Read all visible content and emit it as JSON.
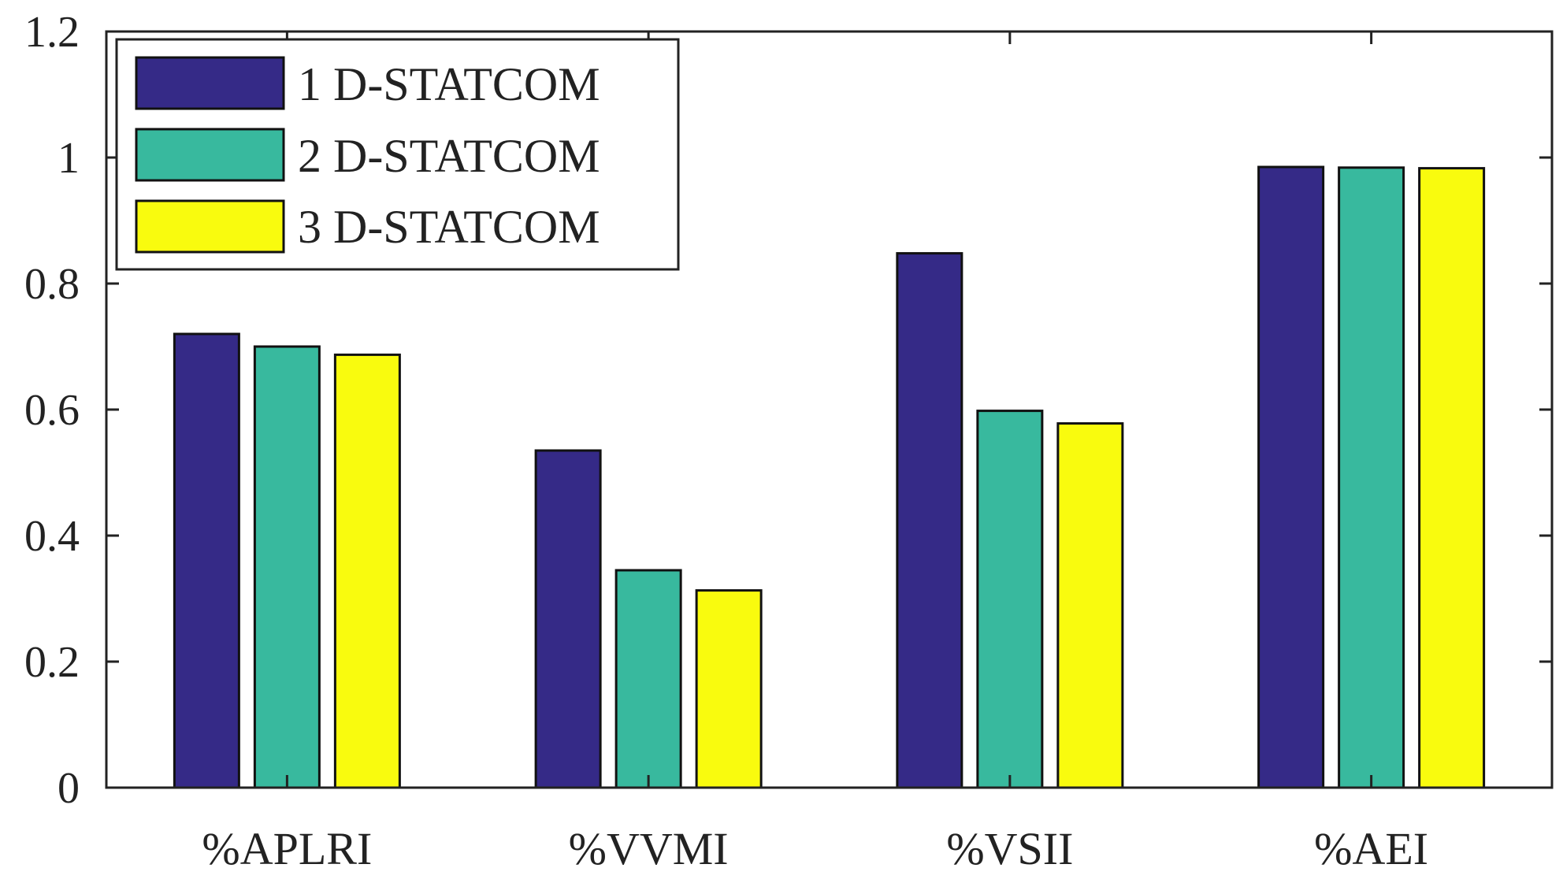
{
  "chart_data": {
    "type": "bar",
    "title": "",
    "xlabel": "",
    "ylabel": "",
    "categories": [
      "%APLRI",
      "%VVMI",
      "%VSII",
      "%AEI"
    ],
    "series": [
      {
        "name": "1 D-STATCOM",
        "color": "#352A87",
        "values": [
          0.72,
          0.535,
          0.848,
          0.985
        ]
      },
      {
        "name": "2 D-STATCOM",
        "color": "#38B99E",
        "values": [
          0.7,
          0.345,
          0.598,
          0.984
        ]
      },
      {
        "name": "3 D-STATCOM",
        "color": "#F9FB0E",
        "values": [
          0.687,
          0.313,
          0.578,
          0.983
        ]
      }
    ],
    "ylim": [
      0,
      1.2
    ],
    "yticks": [
      "0",
      "0.2",
      "0.4",
      "0.6",
      "0.8",
      "1",
      "1.2"
    ],
    "grid": false,
    "legend_position": "top-left"
  }
}
